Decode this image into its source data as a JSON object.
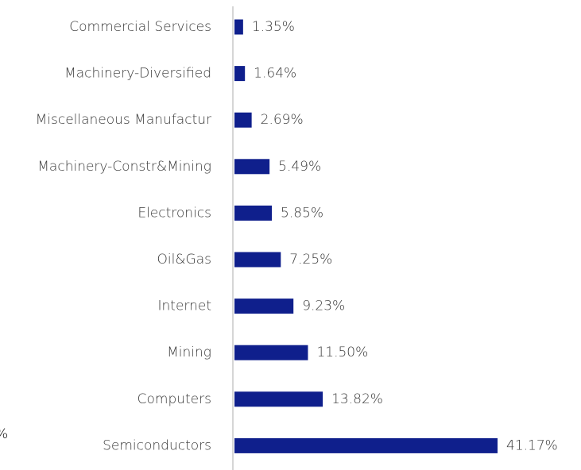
{
  "chart_data": {
    "type": "bar",
    "orientation": "horizontal",
    "categories": [
      "Commercial Services",
      "Machinery-Diversified",
      "Miscellaneous Manufactur",
      "Machinery-Constr&Mining",
      "Electronics",
      "Oil&Gas",
      "Internet",
      "Mining",
      "Computers",
      "Semiconductors"
    ],
    "values": [
      1.35,
      1.64,
      2.69,
      5.49,
      5.85,
      7.25,
      9.23,
      11.5,
      13.82,
      41.17
    ],
    "value_labels": [
      "1.35%",
      "1.64%",
      "2.69%",
      "5.49%",
      "5.85%",
      "7.25%",
      "9.23%",
      "11.50%",
      "13.82%",
      "41.17%"
    ],
    "title": "",
    "xlabel": "",
    "ylabel": "",
    "xlim": [
      0,
      45
    ],
    "grid": false,
    "legend": "none"
  },
  "stray_text": "%",
  "colors": {
    "bar": "#0f1f8c",
    "axis": "#c8c8c8",
    "text": "#3a3a3a"
  }
}
